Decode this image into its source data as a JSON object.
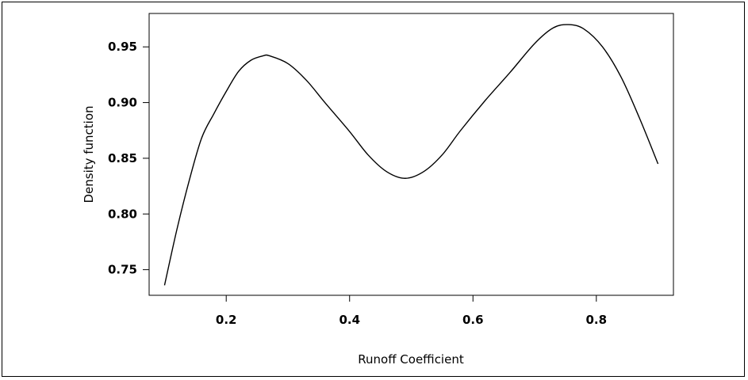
{
  "chart_data": {
    "type": "line",
    "title": "",
    "xlabel": "Runoff Coefficient",
    "ylabel": "Density function",
    "xlim": [
      0.075,
      0.925
    ],
    "ylim": [
      0.727,
      0.98
    ],
    "x_ticks": [
      0.2,
      0.4,
      0.6,
      0.8
    ],
    "x_tick_labels": [
      "0.2",
      "0.4",
      "0.6",
      "0.8"
    ],
    "y_ticks": [
      0.75,
      0.8,
      0.85,
      0.9,
      0.95
    ],
    "y_tick_labels": [
      "0.75",
      "0.80",
      "0.85",
      "0.90",
      "0.95"
    ],
    "grid": false,
    "legend": "none",
    "series": [
      {
        "x": [
          0.1,
          0.12,
          0.14,
          0.16,
          0.18,
          0.2,
          0.22,
          0.24,
          0.26,
          0.27,
          0.3,
          0.33,
          0.36,
          0.4,
          0.43,
          0.46,
          0.49,
          0.52,
          0.55,
          0.58,
          0.62,
          0.66,
          0.7,
          0.73,
          0.755,
          0.78,
          0.81,
          0.84,
          0.87,
          0.9
        ],
        "y": [
          0.736,
          0.786,
          0.83,
          0.868,
          0.89,
          0.91,
          0.928,
          0.938,
          0.942,
          0.942,
          0.935,
          0.92,
          0.9,
          0.874,
          0.853,
          0.838,
          0.832,
          0.838,
          0.853,
          0.875,
          0.902,
          0.927,
          0.953,
          0.967,
          0.97,
          0.966,
          0.95,
          0.923,
          0.886,
          0.845
        ]
      }
    ]
  }
}
